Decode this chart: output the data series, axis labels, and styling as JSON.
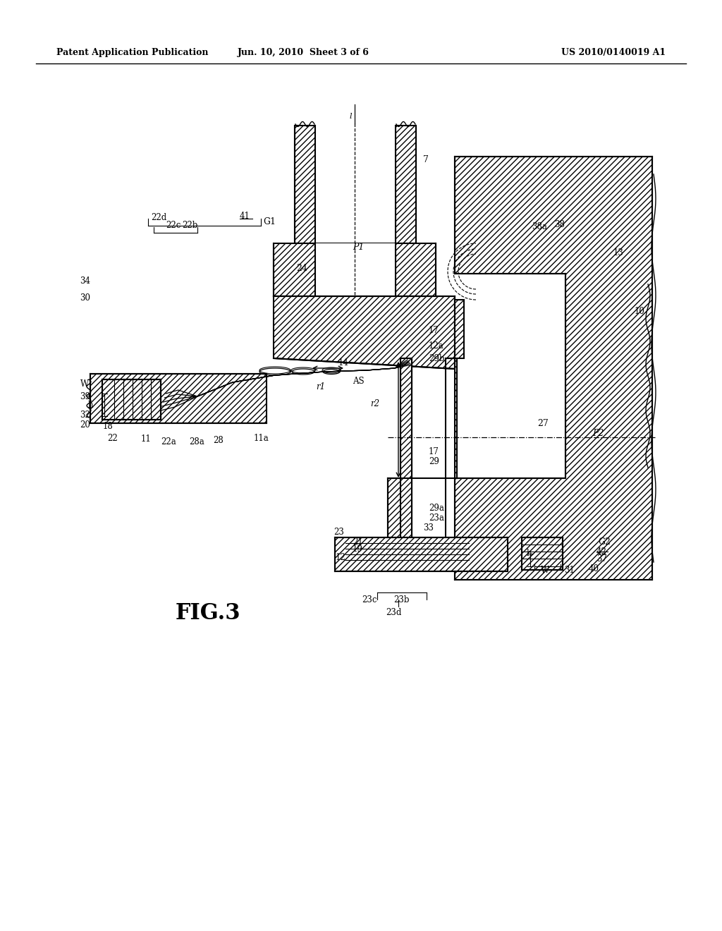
{
  "title_left": "Patent Application Publication",
  "title_center": "Jun. 10, 2010  Sheet 3 of 6",
  "title_right": "US 2010/0140019 A1",
  "fig_label": "FIG.3",
  "background_color": "#ffffff",
  "line_color": "#000000"
}
